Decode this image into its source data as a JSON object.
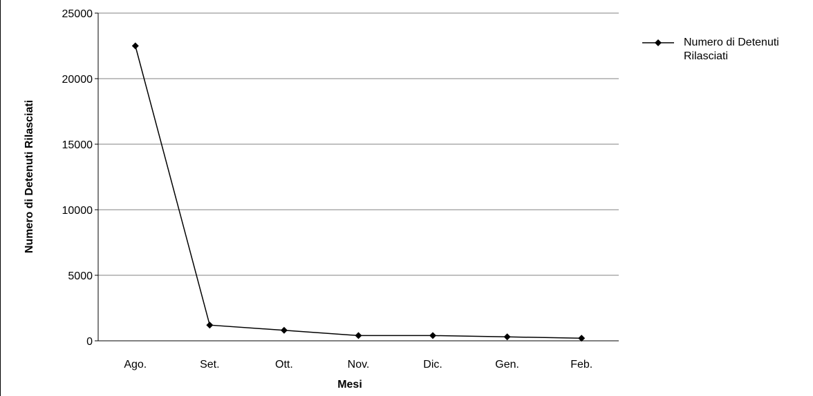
{
  "chart_data": {
    "type": "line",
    "x_label": "Mesi",
    "y_label": "Numero di Detenuti Rilasciati",
    "categories": [
      "Ago.",
      "Set.",
      "Ott.",
      "Nov.",
      "Dic.",
      "Gen.",
      "Feb."
    ],
    "series": [
      {
        "name": "Numero di Detenuti Rilasciati",
        "color": "#000000",
        "values": [
          22500,
          1200,
          800,
          400,
          400,
          300,
          200
        ]
      }
    ],
    "ylim": [
      0,
      25000
    ],
    "yticks": [
      0,
      5000,
      10000,
      15000,
      20000,
      25000
    ],
    "grid": true,
    "legend": "right"
  }
}
